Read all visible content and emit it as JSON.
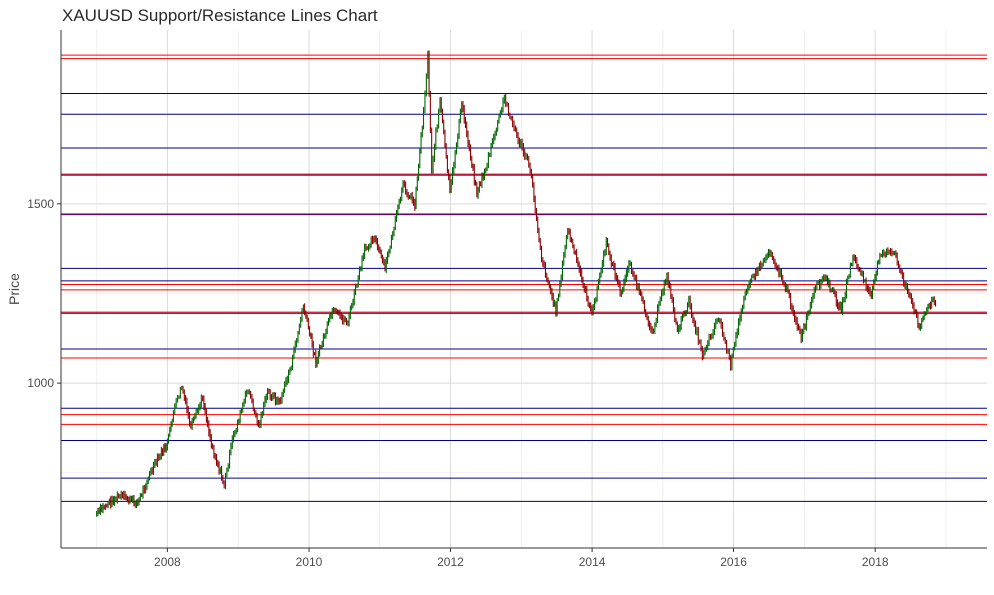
{
  "chart_data": {
    "type": "line",
    "title": "XAUUSD Support/Resistance Lines Chart",
    "xlabel": "",
    "ylabel": "Price",
    "x_ticks": [
      "2008",
      "2010",
      "2012",
      "2014",
      "2016",
      "2018"
    ],
    "y_ticks": [
      1000,
      1500
    ],
    "xlim": [
      "2006-07-01",
      "2019-08-01"
    ],
    "ylim": [
      540,
      1985
    ],
    "grid": true,
    "legend": "none",
    "colors": {
      "bullish": "#006400",
      "bearish": "#8b0000",
      "support": "#00008b",
      "resistance": "#ff0000",
      "grid": "#d9d9d9",
      "axis": "#333333"
    },
    "support_lines": [
      1808,
      1750,
      1656,
      1580,
      1470,
      1320,
      1285,
      1195,
      1095,
      930,
      840,
      735,
      670
    ],
    "resistance_lines": [
      1915,
      1905,
      1583,
      1472,
      1275,
      1260,
      1198,
      1070,
      912,
      885
    ],
    "price_series": [
      {
        "x": "2007-01-01",
        "y": 635
      },
      {
        "x": "2007-03-01",
        "y": 665
      },
      {
        "x": "2007-05-01",
        "y": 685
      },
      {
        "x": "2007-08-01",
        "y": 665
      },
      {
        "x": "2007-10-01",
        "y": 745
      },
      {
        "x": "2007-12-01",
        "y": 805
      },
      {
        "x": "2008-01-01",
        "y": 830
      },
      {
        "x": "2008-02-01",
        "y": 920
      },
      {
        "x": "2008-03-15",
        "y": 990
      },
      {
        "x": "2008-05-01",
        "y": 875
      },
      {
        "x": "2008-07-01",
        "y": 960
      },
      {
        "x": "2008-08-15",
        "y": 830
      },
      {
        "x": "2008-10-20",
        "y": 715
      },
      {
        "x": "2008-12-01",
        "y": 840
      },
      {
        "x": "2009-02-20",
        "y": 985
      },
      {
        "x": "2009-04-15",
        "y": 880
      },
      {
        "x": "2009-06-01",
        "y": 975
      },
      {
        "x": "2009-08-01",
        "y": 945
      },
      {
        "x": "2009-10-01",
        "y": 1050
      },
      {
        "x": "2009-12-03",
        "y": 1215
      },
      {
        "x": "2010-02-05",
        "y": 1060
      },
      {
        "x": "2010-05-01",
        "y": 1200
      },
      {
        "x": "2010-07-20",
        "y": 1170
      },
      {
        "x": "2010-10-15",
        "y": 1370
      },
      {
        "x": "2010-12-01",
        "y": 1410
      },
      {
        "x": "2011-01-28",
        "y": 1320
      },
      {
        "x": "2011-05-01",
        "y": 1550
      },
      {
        "x": "2011-07-01",
        "y": 1500
      },
      {
        "x": "2011-08-15",
        "y": 1760
      },
      {
        "x": "2011-09-06",
        "y": 1915
      },
      {
        "x": "2011-09-26",
        "y": 1600
      },
      {
        "x": "2011-11-08",
        "y": 1790
      },
      {
        "x": "2011-12-29",
        "y": 1530
      },
      {
        "x": "2012-02-28",
        "y": 1780
      },
      {
        "x": "2012-05-16",
        "y": 1530
      },
      {
        "x": "2012-07-01",
        "y": 1600
      },
      {
        "x": "2012-10-05",
        "y": 1795
      },
      {
        "x": "2012-12-01",
        "y": 1700
      },
      {
        "x": "2013-02-15",
        "y": 1600
      },
      {
        "x": "2013-04-15",
        "y": 1350
      },
      {
        "x": "2013-06-28",
        "y": 1200
      },
      {
        "x": "2013-08-28",
        "y": 1430
      },
      {
        "x": "2013-12-31",
        "y": 1190
      },
      {
        "x": "2014-03-15",
        "y": 1390
      },
      {
        "x": "2014-06-01",
        "y": 1245
      },
      {
        "x": "2014-07-10",
        "y": 1340
      },
      {
        "x": "2014-11-07",
        "y": 1140
      },
      {
        "x": "2015-01-22",
        "y": 1305
      },
      {
        "x": "2015-03-17",
        "y": 1145
      },
      {
        "x": "2015-05-15",
        "y": 1225
      },
      {
        "x": "2015-07-24",
        "y": 1080
      },
      {
        "x": "2015-10-15",
        "y": 1185
      },
      {
        "x": "2015-12-17",
        "y": 1050
      },
      {
        "x": "2016-03-01",
        "y": 1260
      },
      {
        "x": "2016-07-06",
        "y": 1370
      },
      {
        "x": "2016-10-01",
        "y": 1260
      },
      {
        "x": "2016-12-15",
        "y": 1125
      },
      {
        "x": "2017-02-27",
        "y": 1265
      },
      {
        "x": "2017-04-17",
        "y": 1295
      },
      {
        "x": "2017-07-10",
        "y": 1205
      },
      {
        "x": "2017-09-08",
        "y": 1355
      },
      {
        "x": "2017-12-12",
        "y": 1240
      },
      {
        "x": "2018-01-25",
        "y": 1365
      },
      {
        "x": "2018-04-11",
        "y": 1360
      },
      {
        "x": "2018-08-16",
        "y": 1160
      },
      {
        "x": "2018-10-26",
        "y": 1240
      },
      {
        "x": "2018-11-15",
        "y": 1200
      }
    ]
  }
}
